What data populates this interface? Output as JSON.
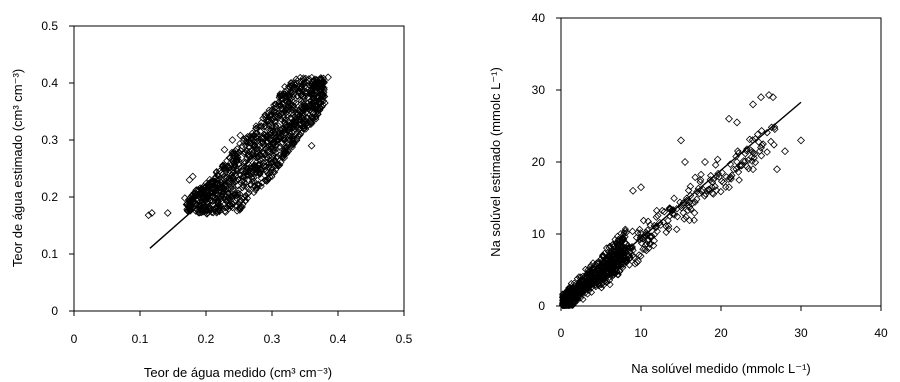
{
  "chart_data": [
    {
      "type": "scatter",
      "title": "",
      "xlabel": "Teor de água medido (cm³ cm⁻³)",
      "ylabel": "Teor de água estimado (cm³ cm⁻³)",
      "xlim": [
        0,
        0.5
      ],
      "ylim": [
        0,
        0.5
      ],
      "xticks": [
        "0",
        "0.1",
        "0.2",
        "0.3",
        "0.4",
        "0.5"
      ],
      "yticks": [
        "0",
        "0.1",
        "0.2",
        "0.3",
        "0.4",
        "0.5"
      ],
      "grid": false,
      "marker": "diamond-open",
      "trend_line": {
        "x": [
          0.115,
          0.37
        ],
        "y": [
          0.11,
          0.37
        ]
      },
      "cloud": {
        "points_approx": 1200,
        "lower_edge": [
          [
            0.17,
            0.175
          ],
          [
            0.2,
            0.17
          ],
          [
            0.25,
            0.175
          ],
          [
            0.28,
            0.215
          ],
          [
            0.3,
            0.235
          ],
          [
            0.32,
            0.27
          ],
          [
            0.345,
            0.31
          ],
          [
            0.37,
            0.34
          ],
          [
            0.38,
            0.37
          ]
        ],
        "upper_edge": [
          [
            0.17,
            0.2
          ],
          [
            0.2,
            0.225
          ],
          [
            0.22,
            0.25
          ],
          [
            0.25,
            0.295
          ],
          [
            0.28,
            0.33
          ],
          [
            0.3,
            0.36
          ],
          [
            0.32,
            0.395
          ],
          [
            0.34,
            0.41
          ],
          [
            0.37,
            0.41
          ]
        ]
      },
      "outliers": [
        [
          0.113,
          0.168
        ],
        [
          0.118,
          0.172
        ],
        [
          0.142,
          0.172
        ],
        [
          0.168,
          0.198
        ],
        [
          0.175,
          0.23
        ],
        [
          0.18,
          0.236
        ],
        [
          0.215,
          0.235
        ],
        [
          0.228,
          0.283
        ],
        [
          0.24,
          0.3
        ],
        [
          0.252,
          0.308
        ],
        [
          0.36,
          0.29
        ],
        [
          0.375,
          0.395
        ],
        [
          0.385,
          0.41
        ],
        [
          0.38,
          0.365
        ]
      ]
    },
    {
      "type": "scatter",
      "title": "",
      "xlabel": "Na solúvel medido (mmolc L⁻¹)",
      "ylabel": "Na solúvel estimado (mmolc L⁻¹)",
      "xlim": [
        0,
        40
      ],
      "ylim": [
        0,
        40
      ],
      "xticks": [
        "0",
        "10",
        "20",
        "30",
        "40"
      ],
      "yticks": [
        "0",
        "10",
        "20",
        "30",
        "40"
      ],
      "grid": false,
      "marker": "diamond-open",
      "trend_line": {
        "x": [
          0,
          30
        ],
        "y": [
          0,
          28.3
        ]
      },
      "cloud": {
        "dense_points_approx": 700,
        "sparse_points_approx": 260
      },
      "outliers": [
        [
          24,
          28
        ],
        [
          25,
          29
        ],
        [
          26,
          29.3
        ],
        [
          26.5,
          29
        ],
        [
          21,
          26
        ],
        [
          22,
          25.5
        ],
        [
          30,
          23
        ],
        [
          28,
          21.5
        ],
        [
          25,
          22
        ],
        [
          22.5,
          19.5
        ],
        [
          24,
          19
        ],
        [
          15,
          23
        ],
        [
          15.5,
          20
        ],
        [
          18,
          20
        ],
        [
          27,
          19
        ],
        [
          21,
          16.5
        ],
        [
          10,
          16.5
        ],
        [
          9,
          16
        ]
      ]
    }
  ]
}
